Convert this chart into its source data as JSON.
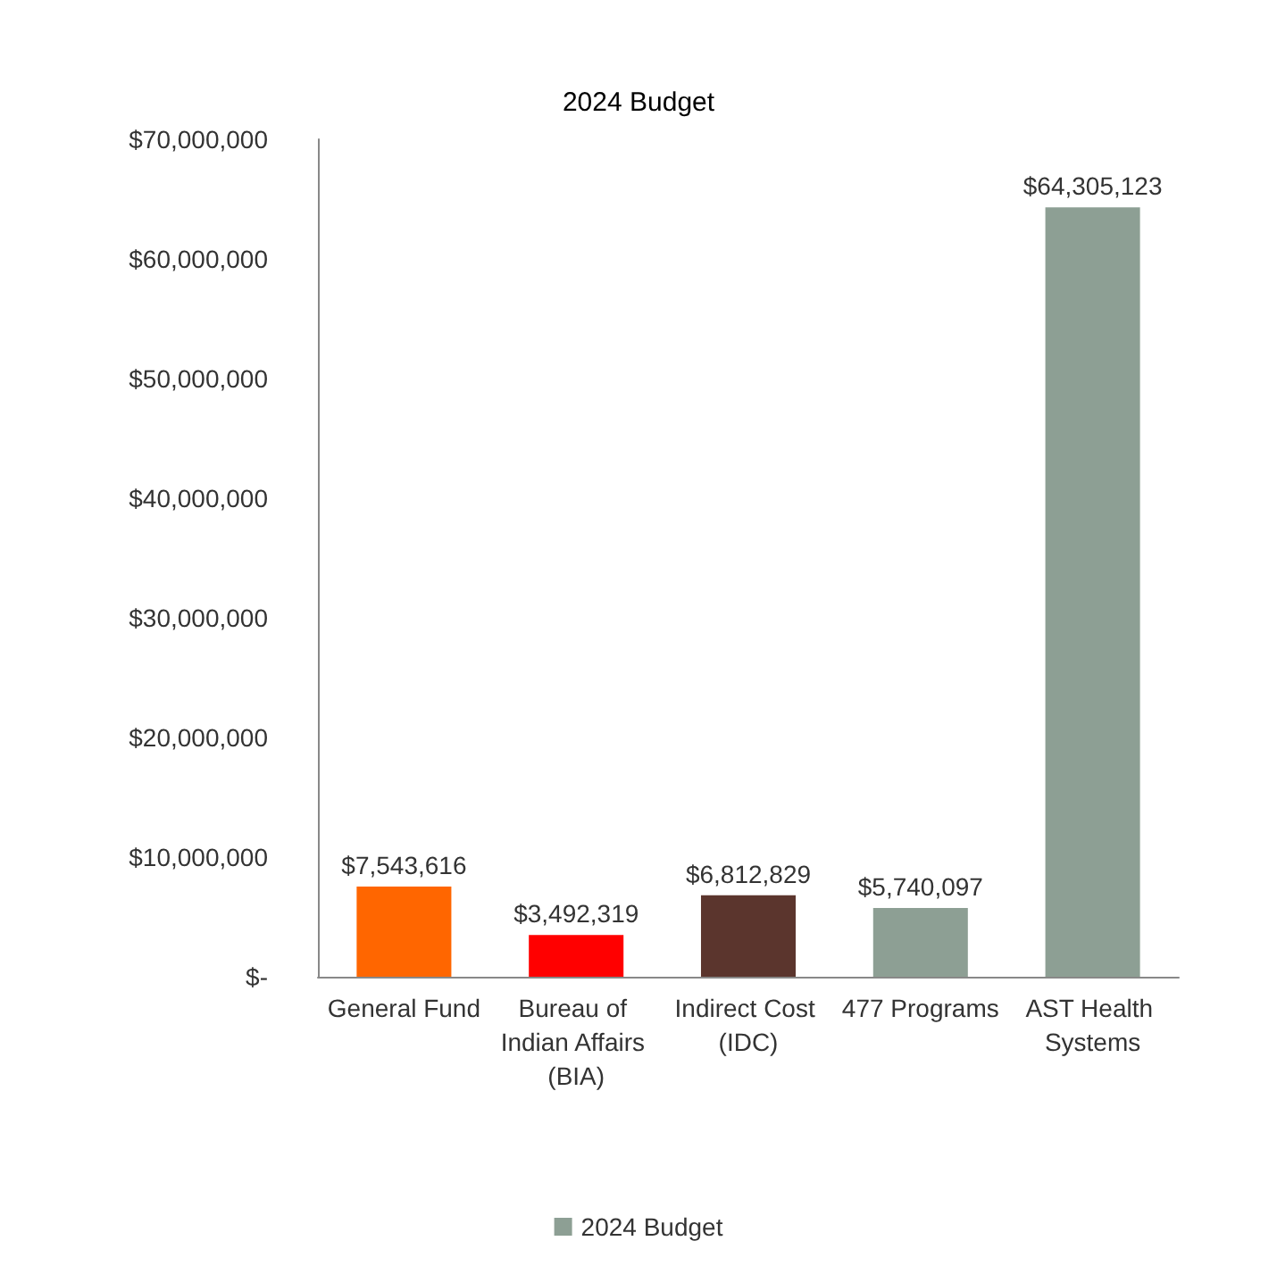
{
  "chart_data": {
    "type": "bar",
    "title": "2024 Budget",
    "categories": [
      "General Fund",
      "Bureau of Indian Affairs (BIA)",
      "Indirect Cost (IDC)",
      "477 Programs",
      "AST Health Systems"
    ],
    "series": [
      {
        "name": "2024 Budget",
        "color": "#8d9f94",
        "colors": [
          "#ff6600",
          "#ff0000",
          "#5b352d",
          "#8d9f94",
          "#8d9f94"
        ],
        "values": [
          7543616,
          3492319,
          6812829,
          5740097,
          64305123
        ],
        "value_labels": [
          "$7,543,616",
          "$3,492,319",
          "$6,812,829",
          "$5,740,097",
          "$64,305,123"
        ]
      }
    ],
    "ylim": [
      0,
      70000000
    ],
    "yticks": [
      {
        "value": 0,
        "label": "$-"
      },
      {
        "value": 10000000,
        "label": "$10,000,000"
      },
      {
        "value": 20000000,
        "label": "$20,000,000"
      },
      {
        "value": 30000000,
        "label": "$30,000,000"
      },
      {
        "value": 40000000,
        "label": "$40,000,000"
      },
      {
        "value": 50000000,
        "label": "$50,000,000"
      },
      {
        "value": 60000000,
        "label": "$60,000,000"
      },
      {
        "value": 70000000,
        "label": "$70,000,000"
      }
    ],
    "grid": false,
    "legend": "bottom"
  }
}
